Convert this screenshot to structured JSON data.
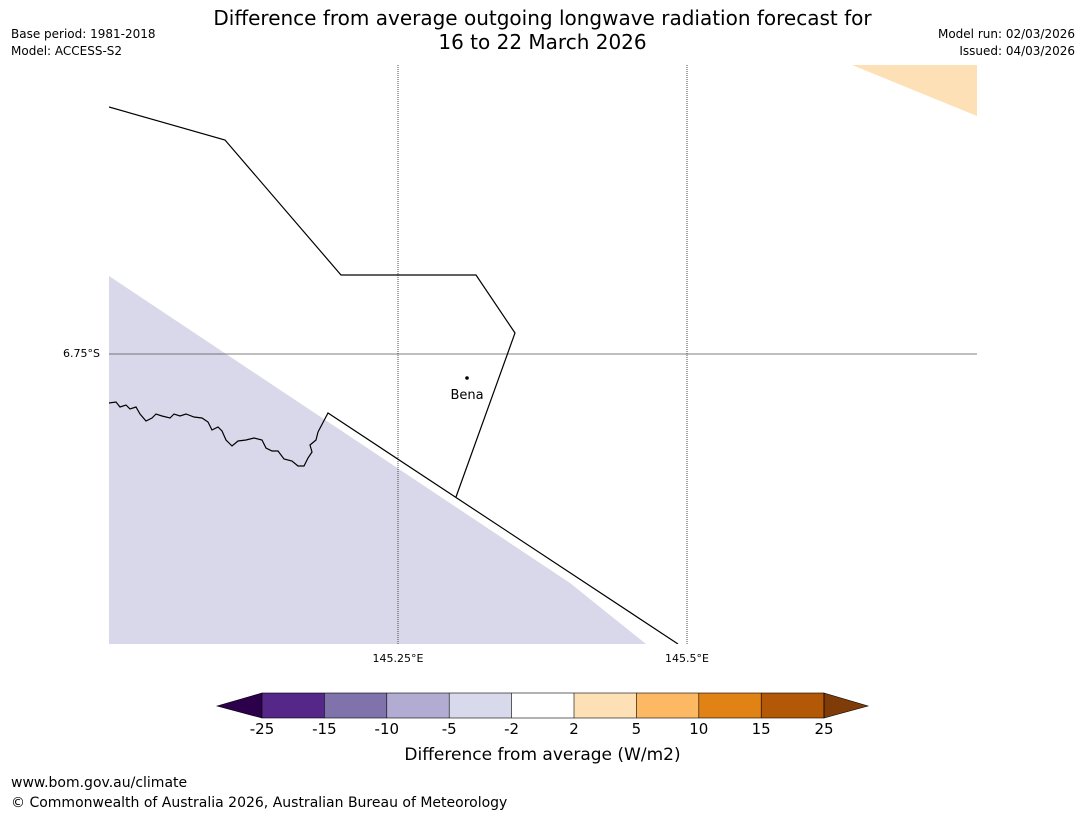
{
  "header": {
    "title_line1": "Difference from average outgoing longwave radiation forecast for",
    "title_line2": "16 to 22 March 2026",
    "base_period": "Base period: 1981-2018",
    "model": "Model: ACCESS-S2",
    "model_run": "Model run: 02/03/2026",
    "issued": "Issued: 04/03/2026"
  },
  "map": {
    "lat_label": "6.75°S",
    "lon_labels": [
      "145.25°E",
      "145.5°E"
    ],
    "place_label": "Bena",
    "shading": [
      {
        "category": "-5 to -2",
        "color": "#d8d8ea"
      },
      {
        "category": "2 to 5",
        "color": "#fee0b6"
      }
    ]
  },
  "colorbar": {
    "title": "Difference from average (W/m2)",
    "ticks": [
      "-25",
      "-15",
      "-10",
      "-5",
      "-2",
      "2",
      "5",
      "10",
      "15",
      "25"
    ],
    "under_color": "#2d004b",
    "over_color": "#7f3b08",
    "colors": [
      "#542788",
      "#8073ac",
      "#b2abd2",
      "#d8daeb",
      "#ffffff",
      "#fee0b6",
      "#fdb863",
      "#e08214",
      "#b35806"
    ]
  },
  "footer": {
    "url": "www.bom.gov.au/climate",
    "copyright": "© Commonwealth of Australia 2026, Australian Bureau of Meteorology"
  }
}
